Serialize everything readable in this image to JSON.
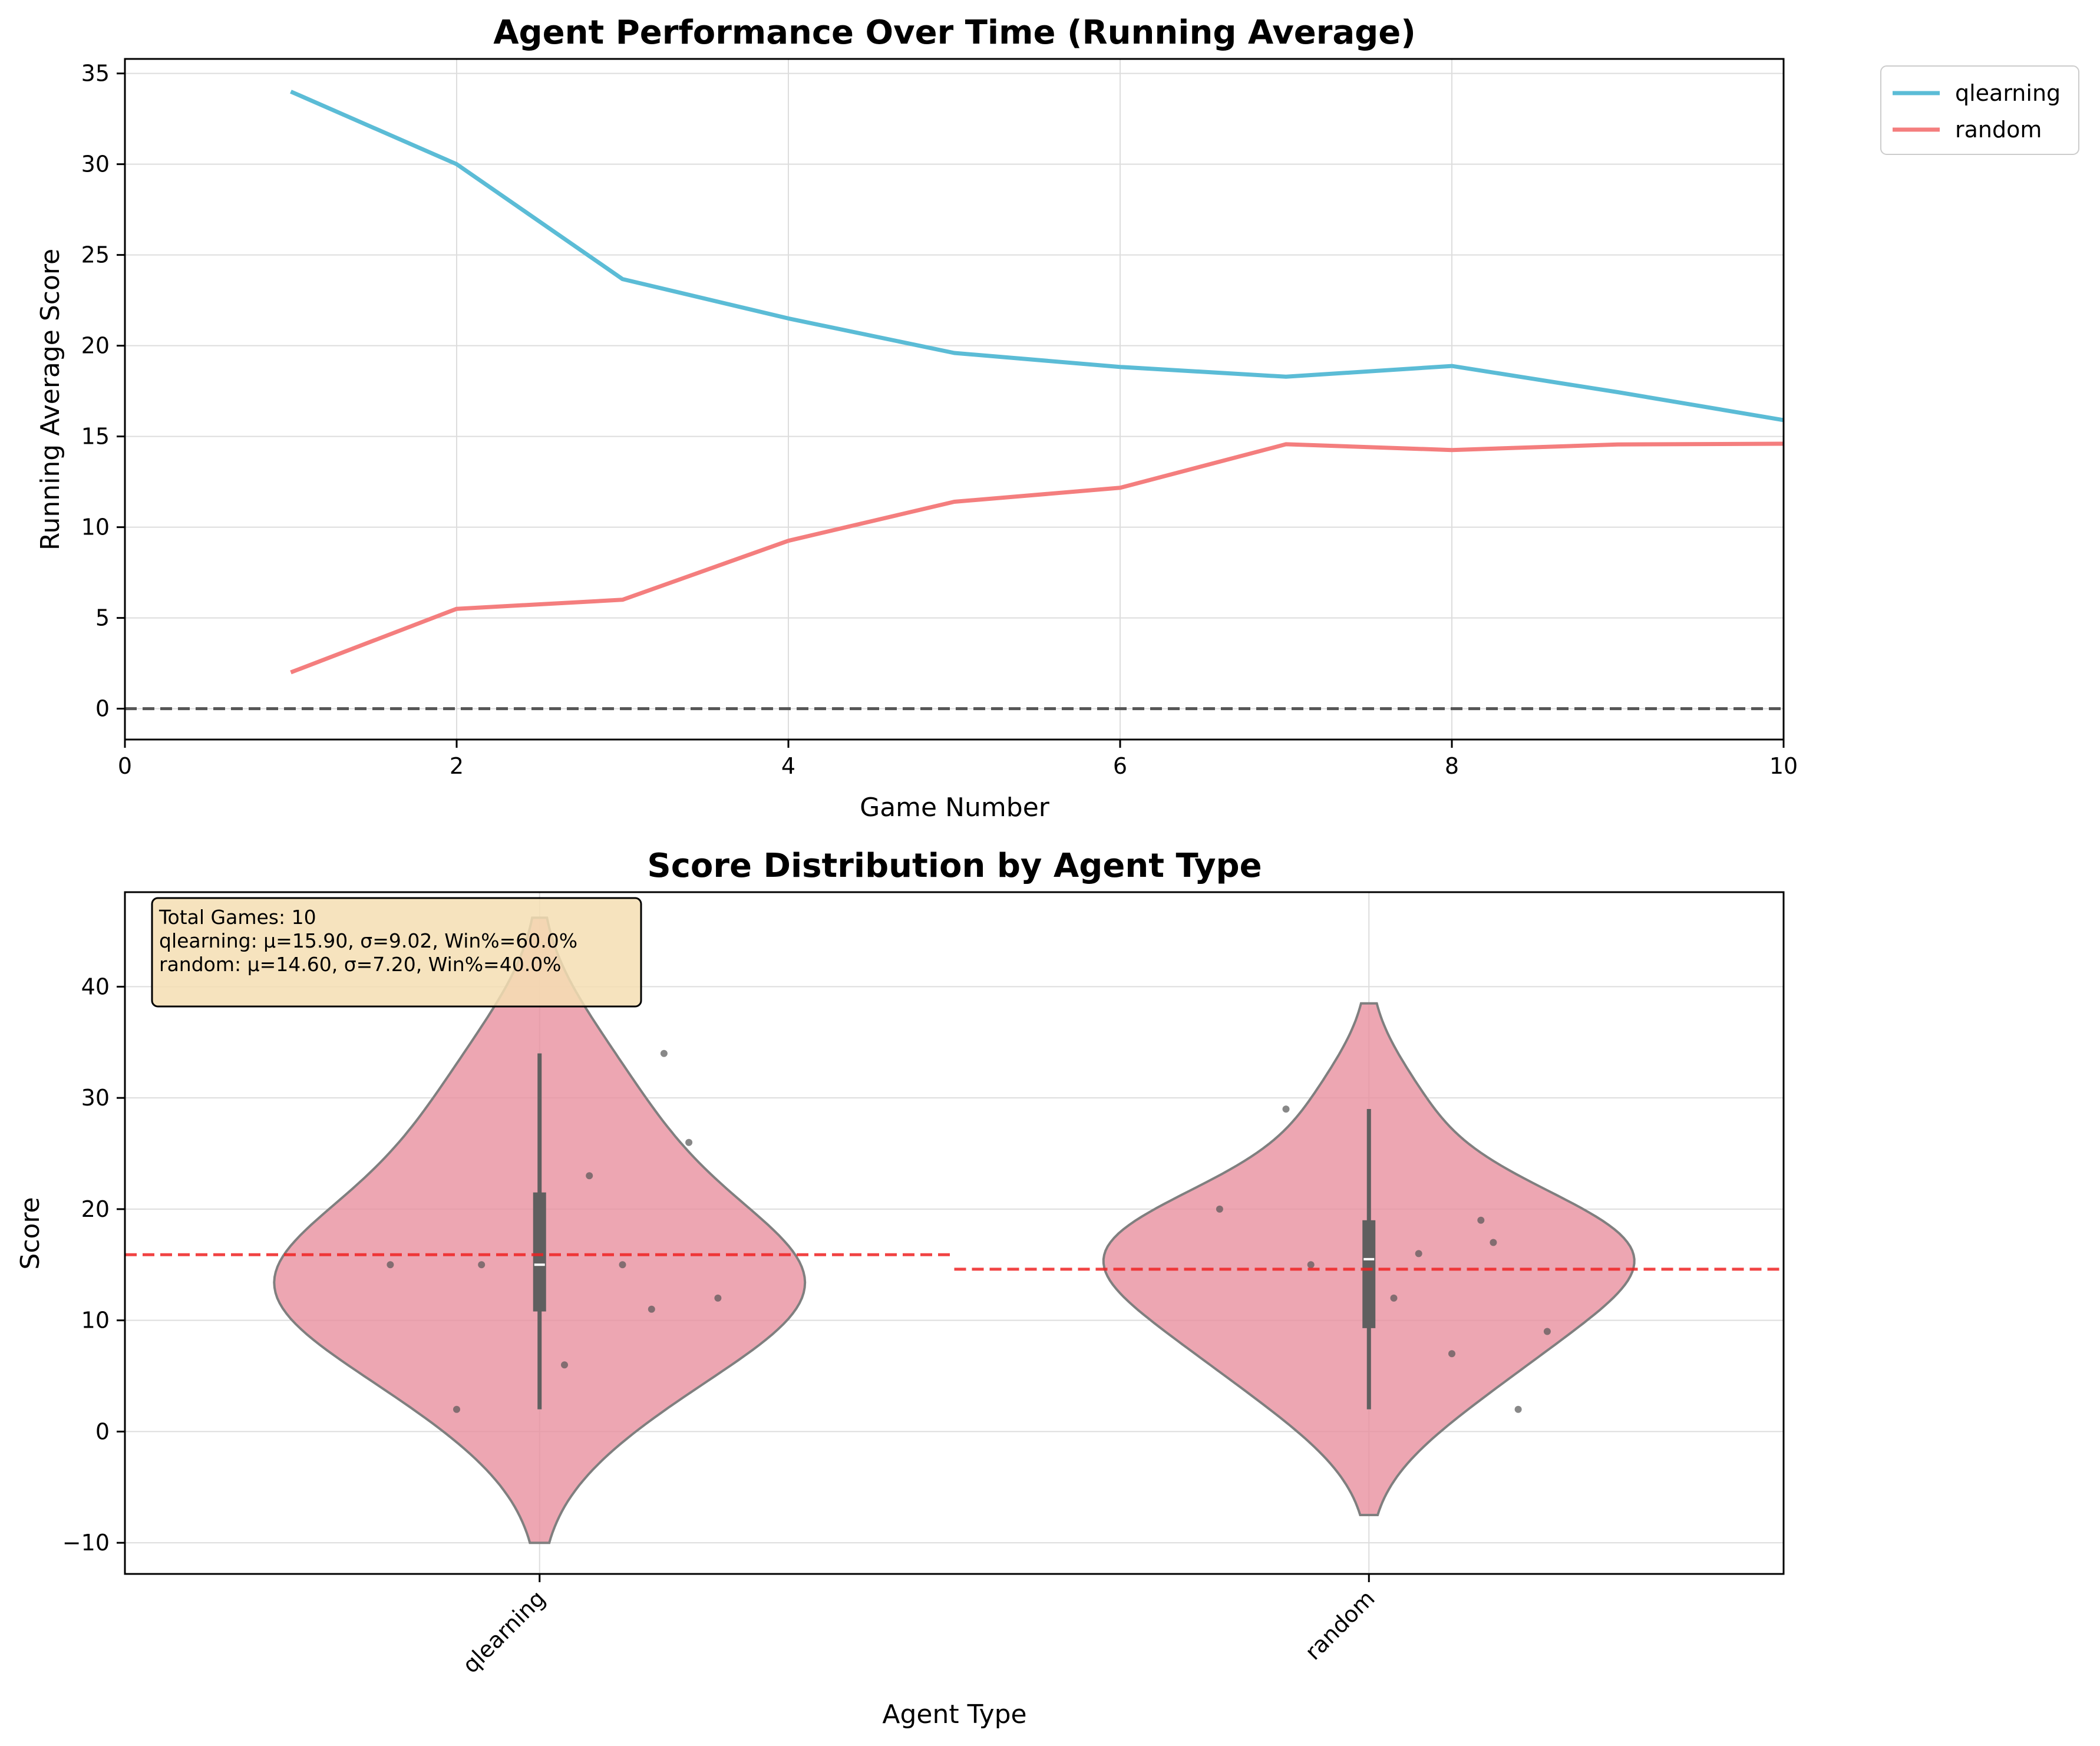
{
  "chart_data": [
    {
      "type": "line",
      "title": "Agent Performance Over Time (Running Average)",
      "xlabel": "Game Number",
      "ylabel": "Running Average Score",
      "xlim": [
        0,
        10
      ],
      "ylim": [
        -1.7,
        35.8
      ],
      "xticks": [
        0,
        2,
        4,
        6,
        8,
        10
      ],
      "yticks": [
        0,
        5,
        10,
        15,
        20,
        25,
        30,
        35
      ],
      "grid": true,
      "legend_position": "outside upper-right",
      "reference_line": {
        "y": 0,
        "style": "dashed",
        "color": "#555555"
      },
      "x": [
        1,
        2,
        3,
        4,
        5,
        6,
        7,
        8,
        9,
        10
      ],
      "series": [
        {
          "name": "qlearning",
          "color": "#5bbcd6",
          "values": [
            34.0,
            30.0,
            23.67,
            21.5,
            19.6,
            18.83,
            18.29,
            18.88,
            17.44,
            15.9
          ]
        },
        {
          "name": "random",
          "color": "#f47e7e",
          "values": [
            2.0,
            5.5,
            6.0,
            9.25,
            11.4,
            12.17,
            14.57,
            14.25,
            14.56,
            14.6
          ]
        }
      ]
    },
    {
      "type": "violin",
      "title": "Score Distribution by Agent Type",
      "xlabel": "Agent Type",
      "ylabel": "Score",
      "ylim": [
        -12.8,
        48.5
      ],
      "yticks": [
        -10,
        0,
        10,
        20,
        30,
        40
      ],
      "grid": true,
      "categories": [
        "qlearning",
        "random"
      ],
      "violin_color": "#e8909f",
      "mean_line_color": "#ee2222",
      "groups": [
        {
          "name": "qlearning",
          "scores": [
            15,
            2,
            23,
            11,
            6,
            12,
            34,
            26,
            15,
            15
          ],
          "mean": 15.9,
          "q1": 10.8,
          "median": 15,
          "q3": 21.5,
          "min": 2,
          "max": 34,
          "density_range": [
            -10,
            46.2
          ]
        },
        {
          "name": "random",
          "scores": [
            20,
            29,
            16,
            19,
            12,
            9,
            17,
            2,
            15,
            7
          ],
          "mean": 14.6,
          "q1": 9.3,
          "median": 15.5,
          "q3": 19,
          "min": 2,
          "max": 29,
          "density_range": [
            -7.5,
            38.5
          ]
        }
      ],
      "stats_box": {
        "line1": "Total Games: 10",
        "line2": "qlearning: μ=15.90, σ=9.02, Win%=60.0%",
        "line3": "random: μ=14.60, σ=7.20, Win%=40.0%"
      }
    }
  ]
}
